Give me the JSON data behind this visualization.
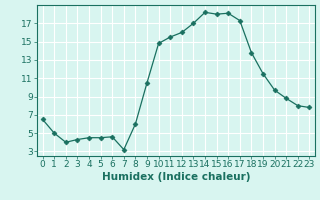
{
  "x": [
    0,
    1,
    2,
    3,
    4,
    5,
    6,
    7,
    8,
    9,
    10,
    11,
    12,
    13,
    14,
    15,
    16,
    17,
    18,
    19,
    20,
    21,
    22,
    23
  ],
  "y": [
    6.5,
    5.0,
    4.0,
    4.3,
    4.5,
    4.5,
    4.6,
    3.2,
    6.0,
    10.5,
    14.8,
    15.5,
    16.0,
    17.0,
    18.2,
    18.0,
    18.1,
    17.3,
    13.8,
    11.5,
    9.7,
    8.8,
    8.0,
    7.8
  ],
  "line_color": "#1a7060",
  "marker": "D",
  "marker_size": 2.5,
  "bg_color": "#d8f5f0",
  "grid_color": "#ffffff",
  "xlabel": "Humidex (Indice chaleur)",
  "xlim": [
    -0.5,
    23.5
  ],
  "ylim": [
    2.5,
    19.0
  ],
  "yticks": [
    3,
    5,
    7,
    9,
    11,
    13,
    15,
    17
  ],
  "xticks": [
    0,
    1,
    2,
    3,
    4,
    5,
    6,
    7,
    8,
    9,
    10,
    11,
    12,
    13,
    14,
    15,
    16,
    17,
    18,
    19,
    20,
    21,
    22,
    23
  ],
  "font_size": 6.5,
  "label_font_size": 7.5
}
